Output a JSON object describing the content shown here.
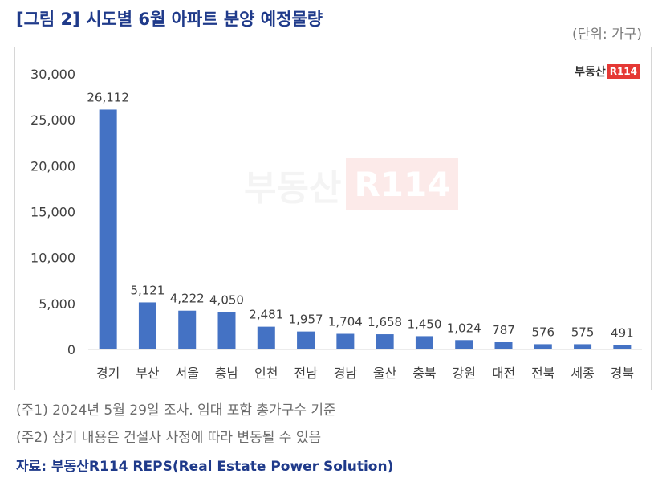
{
  "title": "[그림 2] 시도별 6월 아파트 분양 예정물량",
  "unit_label": "(단위: 가구)",
  "logo": {
    "text": "부동산",
    "badge": "R114"
  },
  "watermark": {
    "text": "부동산",
    "badge": "R114"
  },
  "chart_data": {
    "type": "bar",
    "categories": [
      "경기",
      "부산",
      "서울",
      "충남",
      "인천",
      "전남",
      "경남",
      "울산",
      "충북",
      "강원",
      "대전",
      "전북",
      "세종",
      "경북"
    ],
    "values": [
      26112,
      5121,
      4222,
      4050,
      2481,
      1957,
      1704,
      1658,
      1450,
      1024,
      787,
      576,
      575,
      491
    ],
    "data_labels": [
      "26,112",
      "5,121",
      "4,222",
      "4,050",
      "2,481",
      "1,957",
      "1,704",
      "1,658",
      "1,450",
      "1,024",
      "787",
      "576",
      "575",
      "491"
    ],
    "yticks": [
      "0",
      "5,000",
      "10,000",
      "15,000",
      "20,000",
      "25,000",
      "30,000"
    ],
    "ylim": [
      0,
      30000
    ],
    "grid": false,
    "bar_color": "#4472c4"
  },
  "notes": [
    "(주1) 2024년 5월 29일 조사. 임대 포함 총가구수 기준",
    "(주2) 상기 내용은 건설사 사정에 따라 변동될 수 있음"
  ],
  "source": "자료: 부동산R114 REPS(Real Estate Power Solution)"
}
